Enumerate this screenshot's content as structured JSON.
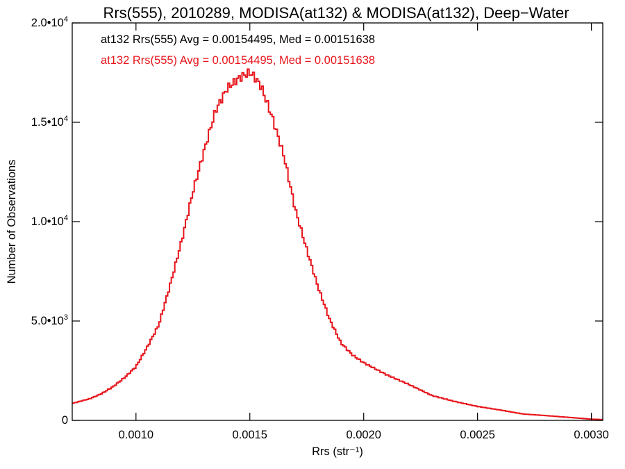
{
  "chart_data": {
    "type": "line",
    "title": "Rrs(555), 2010289, MODISA(at132) & MODISA(at132), Deep−Water",
    "xlabel": "Rrs (str⁻¹)",
    "ylabel": "Number of Observations",
    "xlim": [
      0.00072,
      0.00305
    ],
    "ylim": [
      0,
      20000
    ],
    "grid": false,
    "step": true,
    "x_ticks": [
      {
        "value": 0.001,
        "label": "0.0010"
      },
      {
        "value": 0.0015,
        "label": "0.0015"
      },
      {
        "value": 0.002,
        "label": "0.0020"
      },
      {
        "value": 0.0025,
        "label": "0.0025"
      },
      {
        "value": 0.003,
        "label": "0.0030"
      }
    ],
    "y_ticks": [
      {
        "value": 0,
        "label": "0",
        "exp": ""
      },
      {
        "value": 5000,
        "label": "5.0•10",
        "exp": "3"
      },
      {
        "value": 10000,
        "label": "1.0•10",
        "exp": "4"
      },
      {
        "value": 15000,
        "label": "1.5•10",
        "exp": "4"
      },
      {
        "value": 20000,
        "label": "2.0•10",
        "exp": "4"
      }
    ],
    "annotations": [
      {
        "text": "at132 Rrs(555) Avg = 0.00154495, Med = 0.00151638",
        "color": "#000000"
      },
      {
        "text": "at132 Rrs(555) Avg = 0.00154495, Med = 0.00151638",
        "color": "#e8141b"
      }
    ],
    "series": [
      {
        "color": "#e8141b",
        "x": [
          0.00072,
          0.0008,
          0.00085,
          0.0009,
          0.00095,
          0.001,
          0.00105,
          0.0011,
          0.00115,
          0.0012,
          0.00125,
          0.0013,
          0.00135,
          0.0014,
          0.00145,
          0.00148,
          0.0015,
          0.00152,
          0.00155,
          0.0016,
          0.00165,
          0.0017,
          0.00175,
          0.0018,
          0.00185,
          0.0019,
          0.00195,
          0.002,
          0.0021,
          0.0022,
          0.0023,
          0.0024,
          0.0025,
          0.0026,
          0.0027,
          0.0028,
          0.0029,
          0.003,
          0.00305
        ],
        "y": [
          850,
          1100,
          1350,
          1700,
          2150,
          2700,
          3700,
          4800,
          6800,
          9000,
          11500,
          13600,
          15600,
          16700,
          17200,
          17400,
          17500,
          17300,
          16800,
          15200,
          13300,
          10600,
          8600,
          6700,
          5100,
          3900,
          3300,
          2900,
          2300,
          1800,
          1250,
          950,
          700,
          520,
          320,
          240,
          150,
          60,
          40
        ]
      }
    ]
  }
}
